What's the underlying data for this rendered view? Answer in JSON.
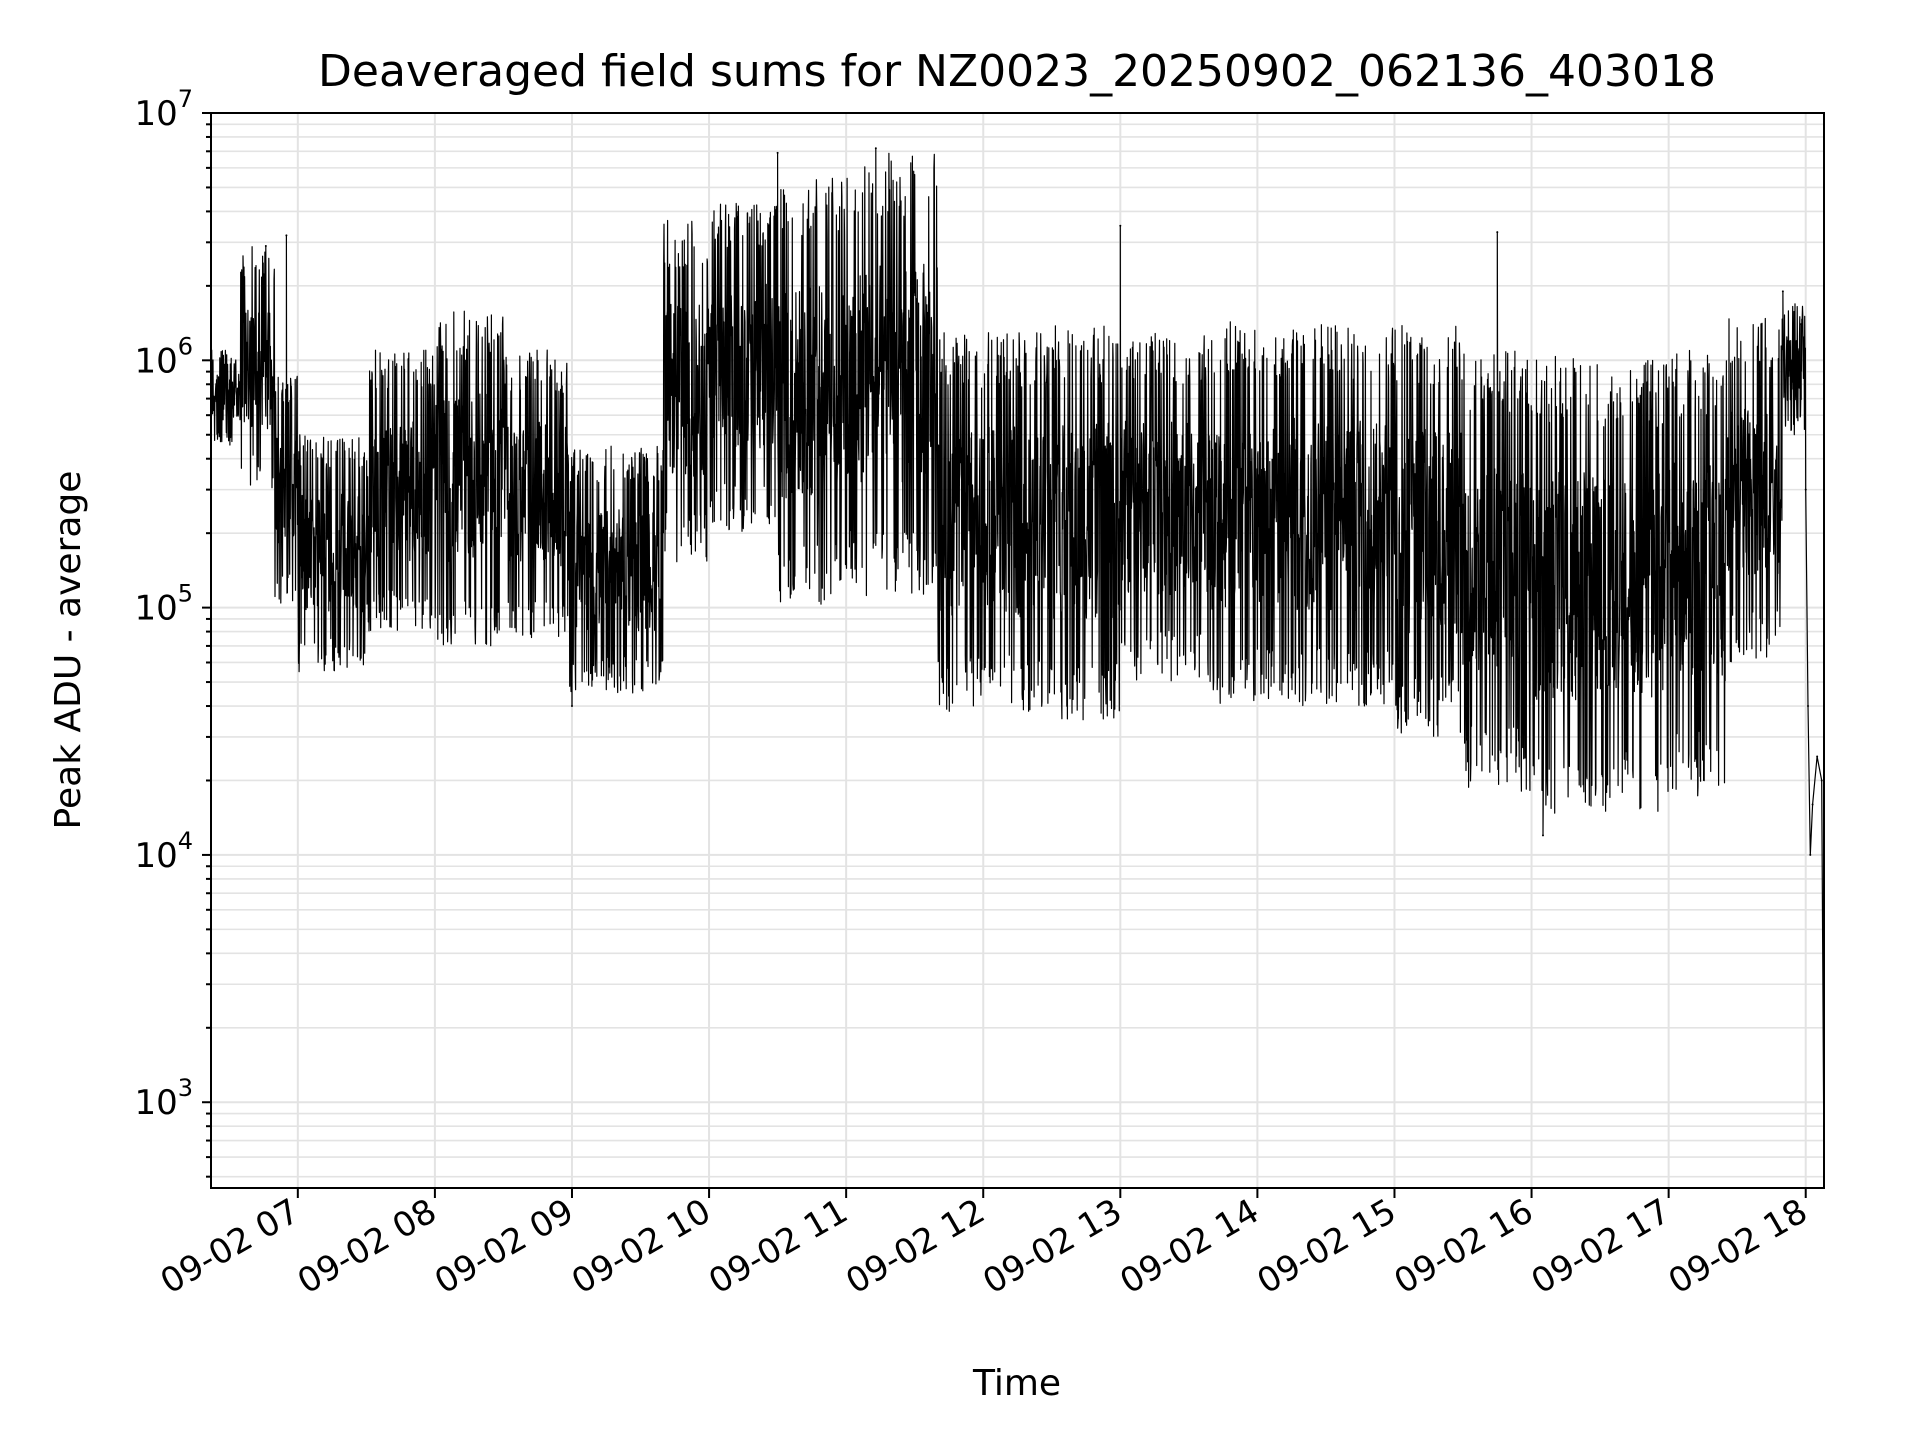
{
  "chart_data": {
    "type": "line",
    "title": "Deaveraged field sums for NZ0023_20250902_062136_403018",
    "xlabel": "Time",
    "ylabel": "Peak ADU - average",
    "yscale": "log",
    "ylim": [
      450,
      10000000
    ],
    "xlim": [
      "2025-09-02 06:22",
      "2025-09-02 18:08"
    ],
    "x_tick_labels": [
      "09-02 07",
      "09-02 08",
      "09-02 09",
      "09-02 10",
      "09-02 11",
      "09-02 12",
      "09-02 13",
      "09-02 14",
      "09-02 15",
      "09-02 16",
      "09-02 17",
      "09-02 18"
    ],
    "y_tick_labels": [
      {
        "base": "10",
        "exp": "3"
      },
      {
        "base": "10",
        "exp": "4"
      },
      {
        "base": "10",
        "exp": "5"
      },
      {
        "base": "10",
        "exp": "6"
      },
      {
        "base": "10",
        "exp": "7"
      }
    ],
    "grid": true,
    "line_color": "#000000",
    "envelope_note": "dense noisy series; per-segment approximate low/high envelope in data units",
    "series": [
      {
        "envelope": [
          {
            "start": "2025-09-02 06:22",
            "end": "2025-09-02 06:35",
            "low": 450000,
            "high": 1100000
          },
          {
            "start": "2025-09-02 06:35",
            "end": "2025-09-02 06:50",
            "low": 300000,
            "high": 2900000
          },
          {
            "start": "2025-09-02 06:50",
            "end": "2025-09-02 07:00",
            "low": 100000,
            "high": 900000
          },
          {
            "start": "2025-09-02 07:00",
            "end": "2025-09-02 07:30",
            "low": 55000,
            "high": 500000
          },
          {
            "start": "2025-09-02 07:30",
            "end": "2025-09-02 08:00",
            "low": 80000,
            "high": 1100000
          },
          {
            "start": "2025-09-02 08:00",
            "end": "2025-09-02 08:30",
            "low": 70000,
            "high": 1600000
          },
          {
            "start": "2025-09-02 08:30",
            "end": "2025-09-02 08:58",
            "low": 75000,
            "high": 1100000
          },
          {
            "start": "2025-09-02 08:58",
            "end": "2025-09-02 09:40",
            "low": 45000,
            "high": 450000
          },
          {
            "start": "2025-09-02 09:40",
            "end": "2025-09-02 10:00",
            "low": 150000,
            "high": 3800000
          },
          {
            "start": "2025-09-02 10:00",
            "end": "2025-09-02 10:30",
            "low": 200000,
            "high": 4500000
          },
          {
            "start": "2025-09-02 10:30",
            "end": "2025-09-02 11:00",
            "low": 100000,
            "high": 5500000
          },
          {
            "start": "2025-09-02 11:00",
            "end": "2025-09-02 11:40",
            "low": 110000,
            "high": 7000000
          },
          {
            "start": "2025-09-02 11:40",
            "end": "2025-09-02 12:30",
            "low": 38000,
            "high": 1300000
          },
          {
            "start": "2025-09-02 12:30",
            "end": "2025-09-02 13:00",
            "low": 35000,
            "high": 1400000
          },
          {
            "start": "2025-09-02 13:00",
            "end": "2025-09-02 13:40",
            "low": 50000,
            "high": 1300000
          },
          {
            "start": "2025-09-02 13:40",
            "end": "2025-09-02 14:30",
            "low": 40000,
            "high": 1450000
          },
          {
            "start": "2025-09-02 14:30",
            "end": "2025-09-02 15:00",
            "low": 40000,
            "high": 1400000
          },
          {
            "start": "2025-09-02 15:00",
            "end": "2025-09-02 15:30",
            "low": 30000,
            "high": 1400000
          },
          {
            "start": "2025-09-02 15:30",
            "end": "2025-09-02 16:00",
            "low": 18000,
            "high": 1100000
          },
          {
            "start": "2025-09-02 16:00",
            "end": "2025-09-02 16:30",
            "low": 14000,
            "high": 1050000
          },
          {
            "start": "2025-09-02 16:30",
            "end": "2025-09-02 17:00",
            "low": 15000,
            "high": 1000000
          },
          {
            "start": "2025-09-02 17:00",
            "end": "2025-09-02 17:25",
            "low": 17000,
            "high": 1100000
          },
          {
            "start": "2025-09-02 17:25",
            "end": "2025-09-02 17:50",
            "low": 60000,
            "high": 1500000
          },
          {
            "start": "2025-09-02 17:50",
            "end": "2025-09-02 18:00",
            "low": 500000,
            "high": 1700000
          }
        ],
        "points": [
          {
            "x": "2025-09-02 06:22",
            "y": 700000
          },
          {
            "x": "2025-09-02 06:46",
            "y": 2900000
          },
          {
            "x": "2025-09-02 06:55",
            "y": 3200000
          },
          {
            "x": "2025-09-02 09:00",
            "y": 40000
          },
          {
            "x": "2025-09-02 10:30",
            "y": 6900000
          },
          {
            "x": "2025-09-02 11:13",
            "y": 7200000
          },
          {
            "x": "2025-09-02 13:00",
            "y": 3500000
          },
          {
            "x": "2025-09-02 15:45",
            "y": 3300000
          },
          {
            "x": "2025-09-02 16:05",
            "y": 12000
          },
          {
            "x": "2025-09-02 17:50",
            "y": 1900000
          },
          {
            "x": "2025-09-02 17:58",
            "y": 1400000
          },
          {
            "x": "2025-09-02 18:00",
            "y": 300000
          },
          {
            "x": "2025-09-02 18:01",
            "y": 40000
          },
          {
            "x": "2025-09-02 18:02",
            "y": 10000
          },
          {
            "x": "2025-09-02 18:03",
            "y": 16000
          },
          {
            "x": "2025-09-02 18:05",
            "y": 25000
          },
          {
            "x": "2025-09-02 18:07",
            "y": 20000
          },
          {
            "x": "2025-09-02 18:08",
            "y": 500
          }
        ]
      }
    ]
  }
}
